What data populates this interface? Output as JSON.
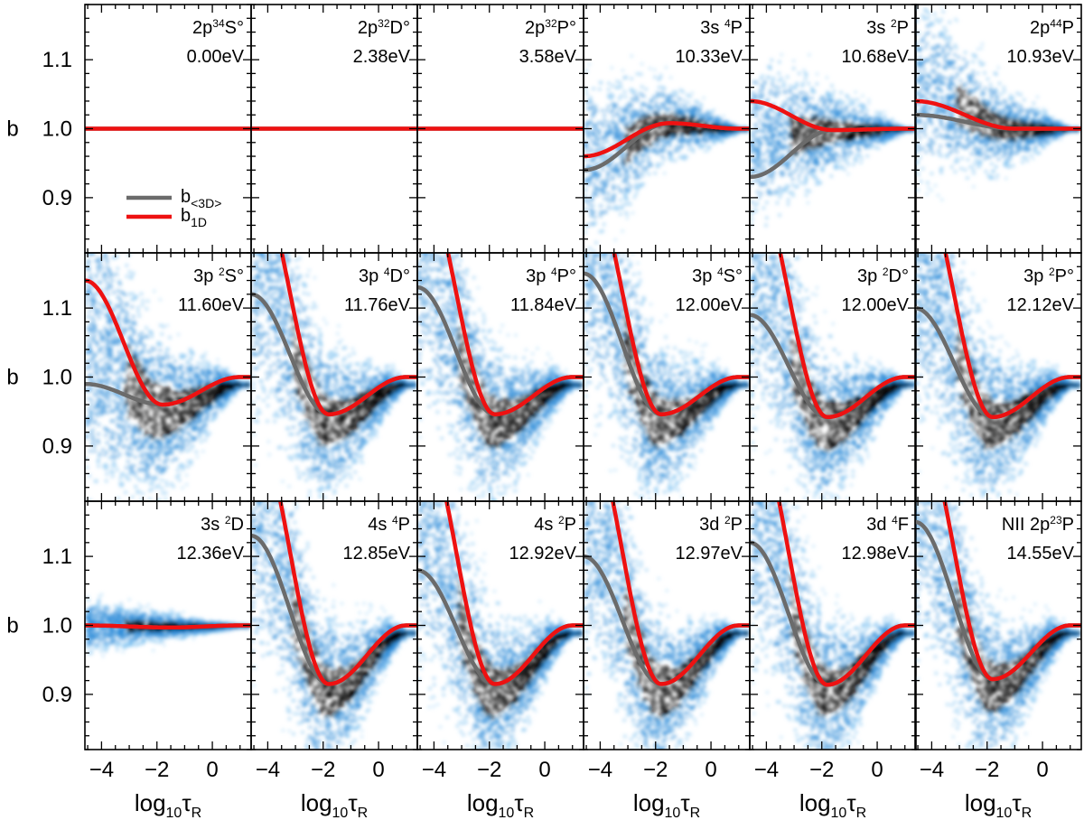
{
  "chart_data": {
    "type": "scatter",
    "title": "",
    "ylabel": "b",
    "xlabel_main": "log",
    "xlabel_sub": "10",
    "xlabel_tau": "τ",
    "xlabel_tau_sub": "R",
    "xlim": [
      -4.6,
      1.4
    ],
    "ylim": [
      0.82,
      1.18
    ],
    "xticks": [
      -4,
      -2,
      0
    ],
    "xtick_labels": [
      "−4",
      "−2",
      "0"
    ],
    "yticks": [
      0.9,
      1.0,
      1.1
    ],
    "ytick_labels": [
      "0.9",
      "1.0",
      "1.1"
    ],
    "colors": {
      "gray": "#6b6b6b",
      "red": "#ee1111",
      "density_light": "#a8d8f8",
      "density_mid": "#2b8ad8",
      "density_dark": "#000000"
    },
    "legend": {
      "placement": "lower-left of first panel",
      "items": [
        {
          "main": "b",
          "sub": "<3D>",
          "color": "#6b6b6b"
        },
        {
          "main": "b",
          "sub": "1D",
          "color": "#ee1111"
        }
      ]
    },
    "panels": [
      {
        "l1": [
          {
            "t": "2p"
          },
          {
            "t": "3",
            "sup": true
          },
          {
            "t": "4",
            "sup": true
          },
          {
            "t": "S°"
          }
        ],
        "energy": "0.00eV",
        "g": 1.0,
        "r": 1.0,
        "scatter": 0
      },
      {
        "l1": [
          {
            "t": "2p"
          },
          {
            "t": "3",
            "sup": true
          },
          {
            "t": "2",
            "sup": true
          },
          {
            "t": "D°"
          }
        ],
        "energy": "2.38eV",
        "g": 1.0,
        "r": 1.0,
        "scatter": 0
      },
      {
        "l1": [
          {
            "t": "2p"
          },
          {
            "t": "3",
            "sup": true
          },
          {
            "t": "2",
            "sup": true
          },
          {
            "t": "P°"
          }
        ],
        "energy": "3.58eV",
        "g": 1.0,
        "r": 1.0,
        "scatter": 0
      },
      {
        "l1": [
          {
            "t": "3s "
          },
          {
            "t": "4",
            "sup": true
          },
          {
            "t": "P"
          }
        ],
        "energy": "10.33eV",
        "g": 0.94,
        "r": 0.96,
        "min": 1.008,
        "mx": -1.5,
        "scatter": 1
      },
      {
        "l1": [
          {
            "t": "3s "
          },
          {
            "t": "2",
            "sup": true
          },
          {
            "t": "P"
          }
        ],
        "energy": "10.68eV",
        "g": 0.93,
        "r": 1.04,
        "min": 0.998,
        "mx": -1.6,
        "scatter": 1
      },
      {
        "l1": [
          {
            "t": "2p"
          },
          {
            "t": "4",
            "sup": true
          },
          {
            "t": "4",
            "sup": true
          },
          {
            "t": "P"
          }
        ],
        "energy": "10.93eV",
        "g": 1.02,
        "r": 1.04,
        "min": 1.0,
        "mx": -1.0,
        "scatter": 2
      },
      {
        "l1": [
          {
            "t": "3p "
          },
          {
            "t": "2",
            "sup": true
          },
          {
            "t": "S°"
          }
        ],
        "energy": "11.60eV",
        "g": 0.99,
        "r": 1.14,
        "min": 0.96,
        "mx": -1.8,
        "scatter": 3
      },
      {
        "l1": [
          {
            "t": "3p "
          },
          {
            "t": "4",
            "sup": true
          },
          {
            "t": "D°"
          }
        ],
        "energy": "11.76eV",
        "g": 1.12,
        "r": 1.3,
        "min": 0.946,
        "mx": -1.8,
        "scatter": 3
      },
      {
        "l1": [
          {
            "t": "3p "
          },
          {
            "t": "4",
            "sup": true
          },
          {
            "t": "P°"
          }
        ],
        "energy": "11.84eV",
        "g": 1.13,
        "r": 1.3,
        "min": 0.946,
        "mx": -1.8,
        "scatter": 3
      },
      {
        "l1": [
          {
            "t": "3p "
          },
          {
            "t": "4",
            "sup": true
          },
          {
            "t": "S°"
          }
        ],
        "energy": "12.00eV",
        "g": 1.15,
        "r": 1.3,
        "min": 0.946,
        "mx": -1.8,
        "scatter": 3
      },
      {
        "l1": [
          {
            "t": "3p "
          },
          {
            "t": "2",
            "sup": true
          },
          {
            "t": "D°"
          }
        ],
        "energy": "12.00eV",
        "g": 1.09,
        "r": 1.3,
        "min": 0.942,
        "mx": -1.8,
        "scatter": 3
      },
      {
        "l1": [
          {
            "t": "3p "
          },
          {
            "t": "2",
            "sup": true
          },
          {
            "t": "P°"
          }
        ],
        "energy": "12.12eV",
        "g": 1.1,
        "r": 1.3,
        "min": 0.942,
        "mx": -1.8,
        "scatter": 3
      },
      {
        "l1": [
          {
            "t": "3s "
          },
          {
            "t": "2",
            "sup": true
          },
          {
            "t": "D"
          }
        ],
        "energy": "12.36eV",
        "g": 1.0,
        "r": 1.0,
        "min": 0.997,
        "mx": -1.5,
        "scatter": 4
      },
      {
        "l1": [
          {
            "t": "4s "
          },
          {
            "t": "4",
            "sup": true
          },
          {
            "t": "P"
          }
        ],
        "energy": "12.85eV",
        "g": 1.13,
        "r": 1.3,
        "min": 0.915,
        "mx": -1.8,
        "scatter": 3
      },
      {
        "l1": [
          {
            "t": "4s "
          },
          {
            "t": "2",
            "sup": true
          },
          {
            "t": "P"
          }
        ],
        "energy": "12.92eV",
        "g": 1.08,
        "r": 1.3,
        "min": 0.915,
        "mx": -1.8,
        "scatter": 3
      },
      {
        "l1": [
          {
            "t": "3d "
          },
          {
            "t": "2",
            "sup": true
          },
          {
            "t": "P"
          }
        ],
        "energy": "12.97eV",
        "g": 1.1,
        "r": 1.3,
        "min": 0.915,
        "mx": -1.8,
        "scatter": 3
      },
      {
        "l1": [
          {
            "t": "3d "
          },
          {
            "t": "4",
            "sup": true
          },
          {
            "t": "F"
          }
        ],
        "energy": "12.98eV",
        "g": 1.12,
        "r": 1.3,
        "min": 0.914,
        "mx": -1.8,
        "scatter": 3
      },
      {
        "l1": [
          {
            "t": "NII 2p"
          },
          {
            "t": "2",
            "sup": true
          },
          {
            "t": "3",
            "sup": true
          },
          {
            "t": "P"
          }
        ],
        "energy": "14.55eV",
        "g": 1.15,
        "r": 1.3,
        "min": 0.922,
        "mx": -1.8,
        "scatter": 3
      }
    ]
  }
}
